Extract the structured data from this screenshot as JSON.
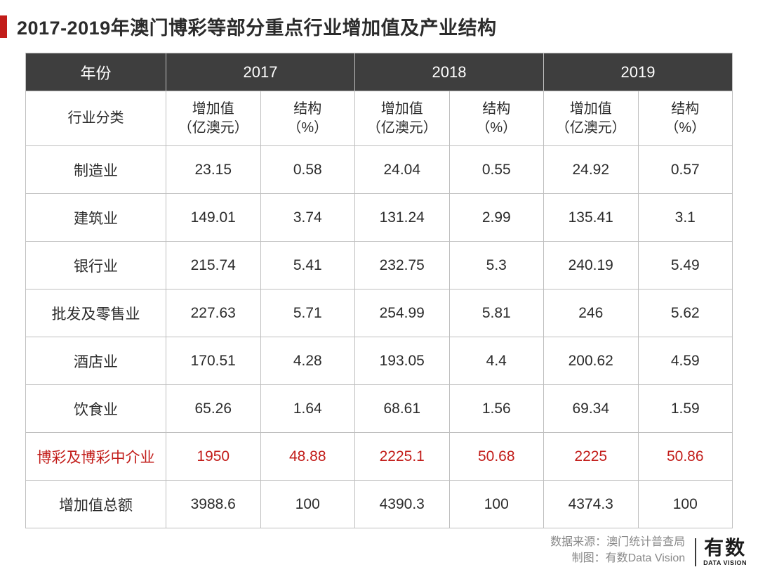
{
  "title": "2017-2019年澳门博彩等部分重点行业增加值及产业结构",
  "colors": {
    "accent": "#c21c19",
    "header_bg": "#3e3e3e",
    "header_fg": "#ffffff",
    "border": "#bfbfbf",
    "text": "#2b2b2b",
    "muted": "#888888"
  },
  "table": {
    "type": "table",
    "header_year_label": "年份",
    "years": [
      "2017",
      "2018",
      "2019"
    ],
    "category_label": "行业分类",
    "subcols": [
      {
        "value_label": "增加值",
        "value_unit": "（亿澳元）",
        "ratio_label": "结构",
        "ratio_unit": "（%）"
      },
      {
        "value_label": "增加值",
        "value_unit": "（亿澳元）",
        "ratio_label": "结构",
        "ratio_unit": "（%）"
      },
      {
        "value_label": "增加值",
        "value_unit": "（亿澳元）",
        "ratio_label": "结构",
        "ratio_unit": "（%）"
      }
    ],
    "rows": [
      {
        "label": "制造业",
        "cells": [
          "23.15",
          "0.58",
          "24.04",
          "0.55",
          "24.92",
          "0.57"
        ],
        "hl": false
      },
      {
        "label": "建筑业",
        "cells": [
          "149.01",
          "3.74",
          "131.24",
          "2.99",
          "135.41",
          "3.1"
        ],
        "hl": false
      },
      {
        "label": "银行业",
        "cells": [
          "215.74",
          "5.41",
          "232.75",
          "5.3",
          "240.19",
          "5.49"
        ],
        "hl": false
      },
      {
        "label": "批发及零售业",
        "cells": [
          "227.63",
          "5.71",
          "254.99",
          "5.81",
          "246",
          "5.62"
        ],
        "hl": false
      },
      {
        "label": "酒店业",
        "cells": [
          "170.51",
          "4.28",
          "193.05",
          "4.4",
          "200.62",
          "4.59"
        ],
        "hl": false
      },
      {
        "label": "饮食业",
        "cells": [
          "65.26",
          "1.64",
          "68.61",
          "1.56",
          "69.34",
          "1.59"
        ],
        "hl": false
      },
      {
        "label": "博彩及博彩中介业",
        "cells": [
          "1950",
          "48.88",
          "2225.1",
          "50.68",
          "2225",
          "50.86"
        ],
        "hl": true
      },
      {
        "label": "增加值总额",
        "cells": [
          "3988.6",
          "100",
          "4390.3",
          "100",
          "4374.3",
          "100"
        ],
        "hl": false
      }
    ]
  },
  "footer": {
    "source_label": "数据来源：",
    "source_value": "澳门统计普查局",
    "credit_label": "制图：",
    "credit_value": "有数Data Vision",
    "logo_top": "有数",
    "logo_sub": "DATA VISION"
  }
}
